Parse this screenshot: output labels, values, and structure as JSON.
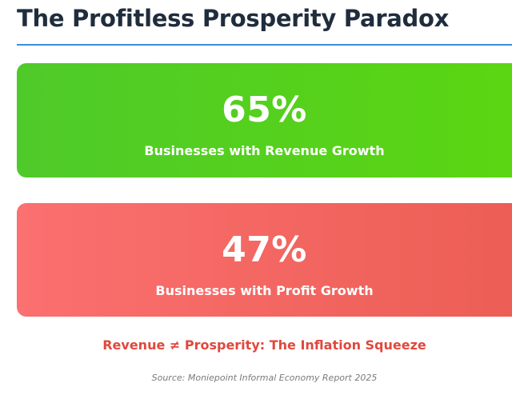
{
  "header": {
    "title": "The Profitless Prosperity Paradox"
  },
  "stats": [
    {
      "value": "65%",
      "percent": 65,
      "label": "Businesses with Revenue Growth",
      "color": "#52cc22"
    },
    {
      "value": "47%",
      "percent": 47,
      "label": "Businesses with Profit Growth",
      "color": "#f4665f"
    }
  ],
  "tagline": "Revenue ≠ Prosperity: The Inflation Squeeze",
  "tagline_color": "#e0483d",
  "source": "Source: Moniepoint Informal Economy Report 2025",
  "accent_color": "#3a8fd8"
}
